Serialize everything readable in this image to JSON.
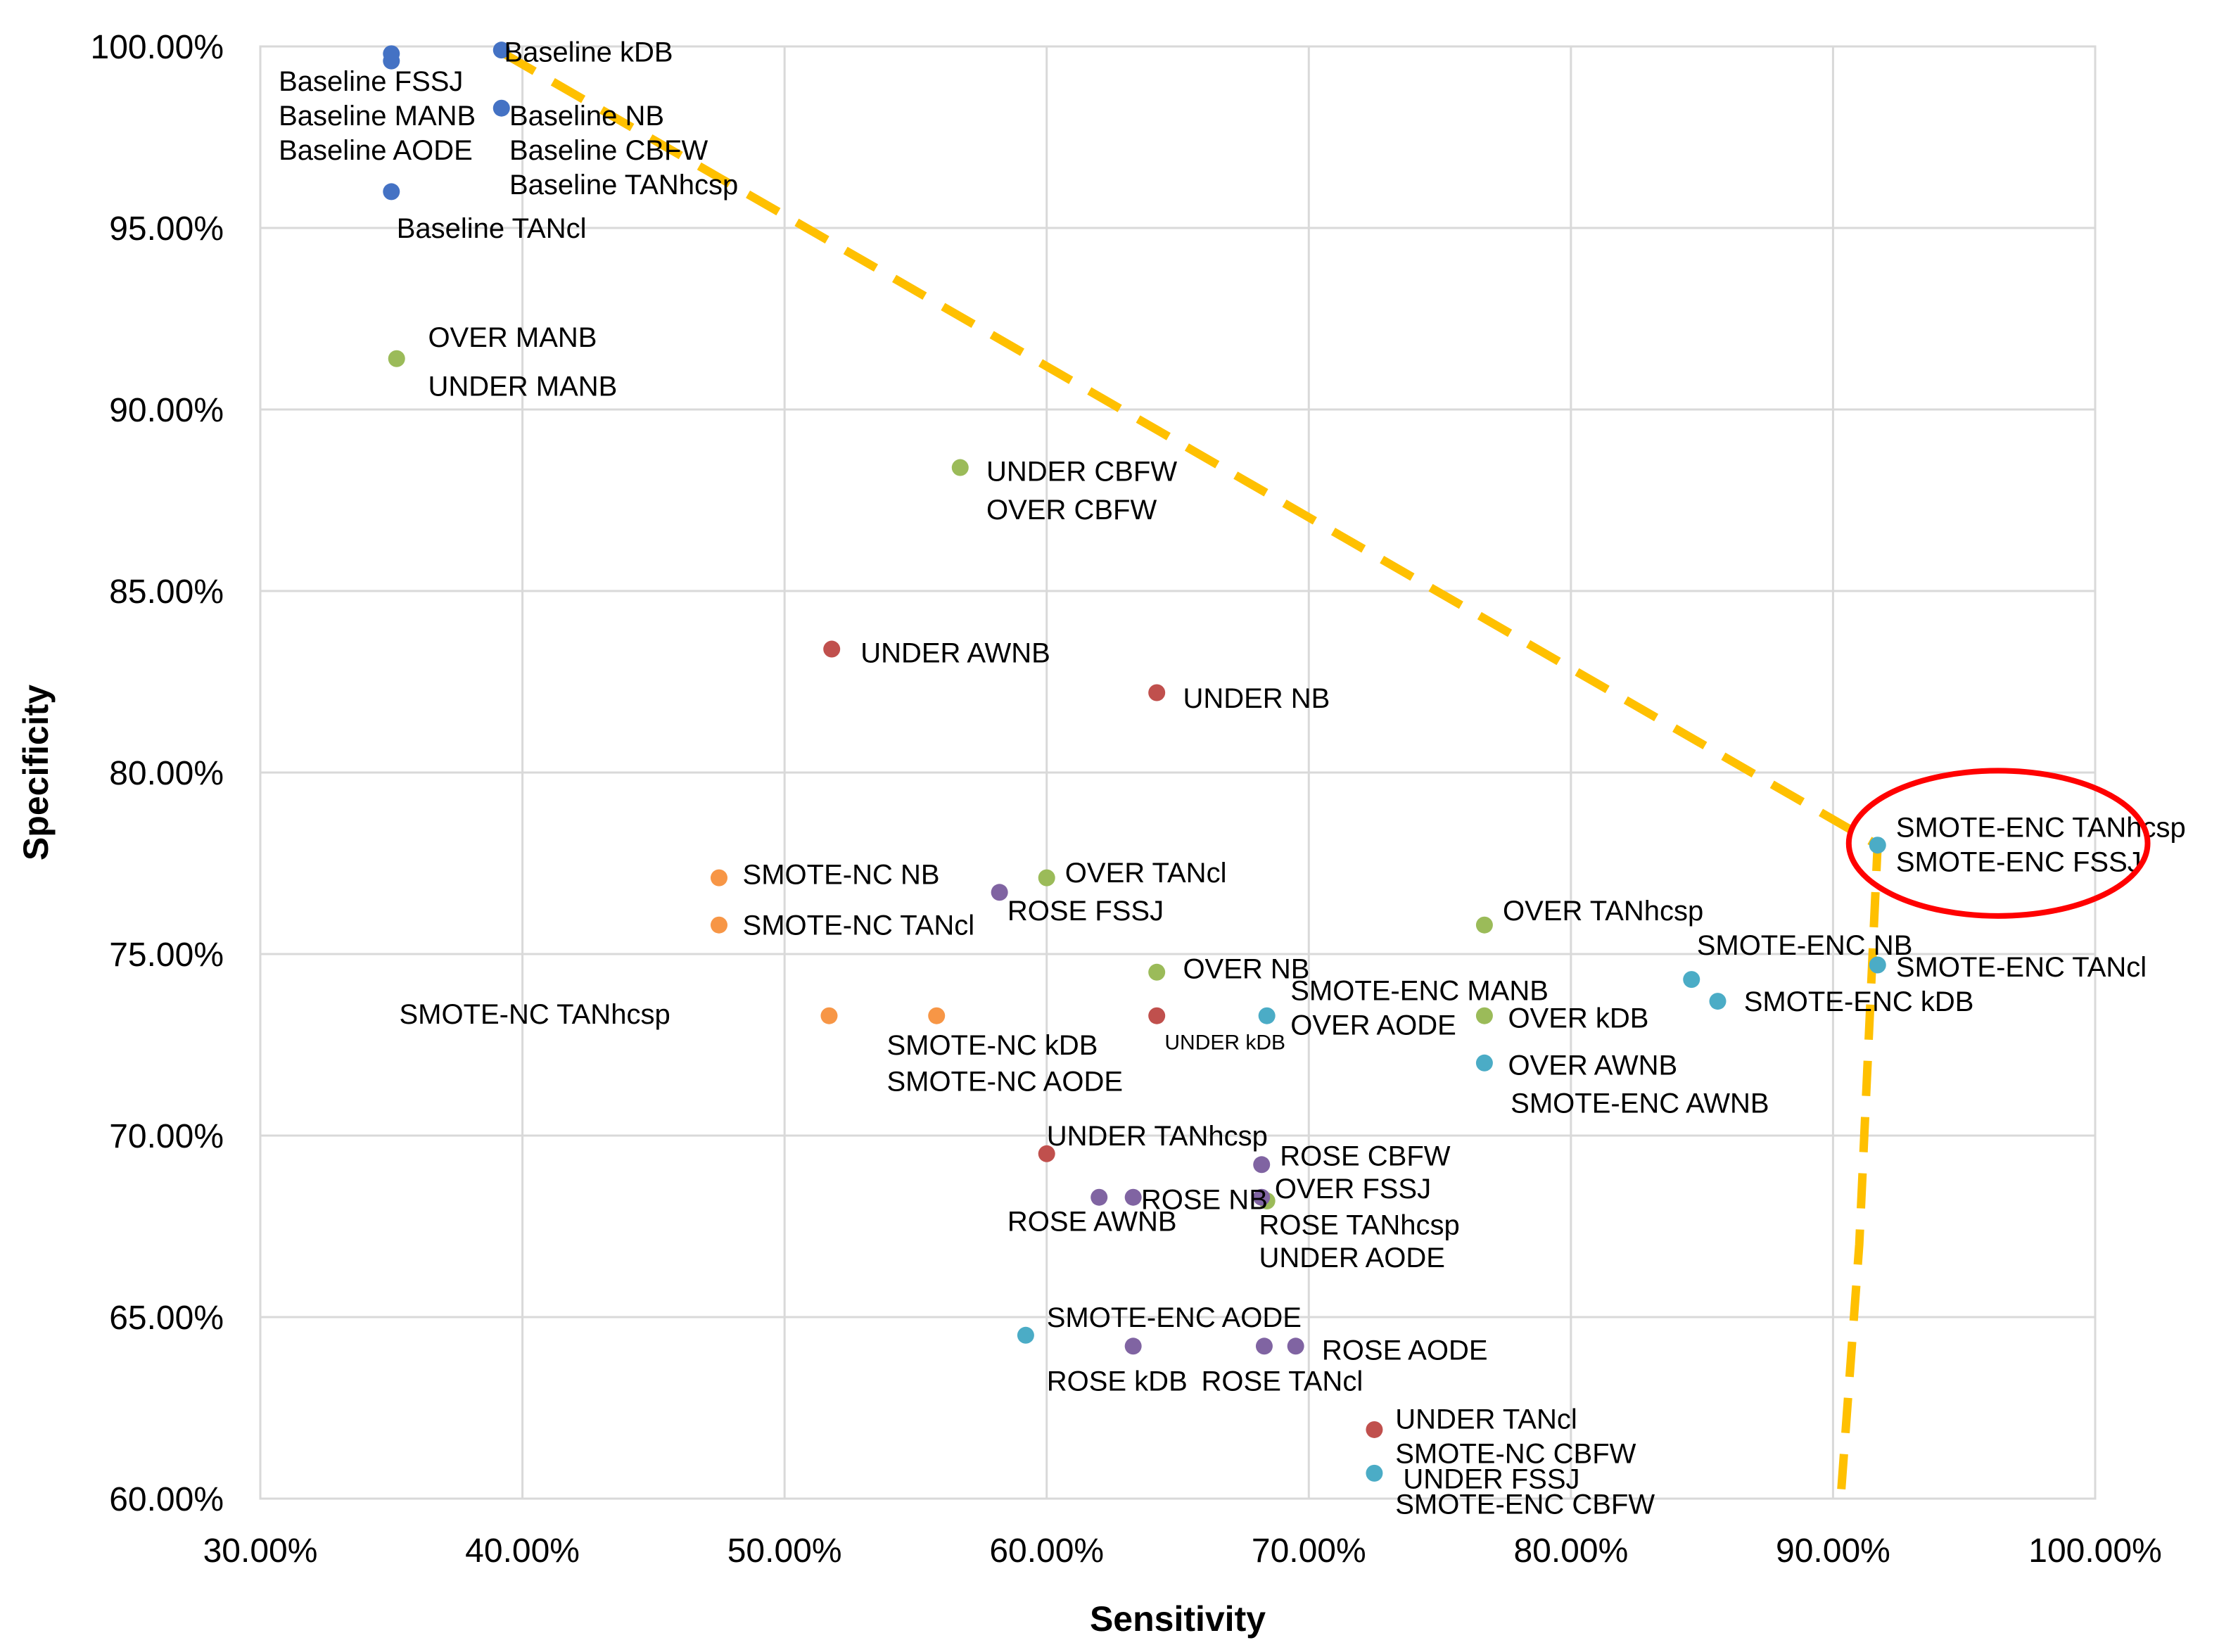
{
  "chart_data": {
    "type": "scatter",
    "title": "",
    "xlabel": "Sensitivity",
    "ylabel": "Specificity",
    "xlim": [
      0.3,
      1.0
    ],
    "ylim": [
      0.6,
      1.0
    ],
    "x_ticks": [
      {
        "value": 0.3,
        "label": "30.00%"
      },
      {
        "value": 0.4,
        "label": "40.00%"
      },
      {
        "value": 0.5,
        "label": "50.00%"
      },
      {
        "value": 0.6,
        "label": "60.00%"
      },
      {
        "value": 0.7,
        "label": "70.00%"
      },
      {
        "value": 0.8,
        "label": "80.00%"
      },
      {
        "value": 0.9,
        "label": "90.00%"
      },
      {
        "value": 1.0,
        "label": "100.00%"
      }
    ],
    "y_ticks": [
      {
        "value": 0.6,
        "label": "60.00%"
      },
      {
        "value": 0.65,
        "label": "65.00%"
      },
      {
        "value": 0.7,
        "label": "70.00%"
      },
      {
        "value": 0.75,
        "label": "75.00%"
      },
      {
        "value": 0.8,
        "label": "80.00%"
      },
      {
        "value": 0.85,
        "label": "85.00%"
      },
      {
        "value": 0.9,
        "label": "90.00%"
      },
      {
        "value": 0.95,
        "label": "95.00%"
      },
      {
        "value": 1.0,
        "label": "100.00%"
      }
    ],
    "grid": true,
    "series": [
      {
        "name": "Baseline",
        "color": "#4472c4",
        "points": [
          {
            "x": 0.35,
            "y": 0.998
          },
          {
            "x": 0.35,
            "y": 0.996
          },
          {
            "x": 0.392,
            "y": 0.999
          },
          {
            "x": 0.392,
            "y": 0.983
          },
          {
            "x": 0.35,
            "y": 0.96
          }
        ]
      },
      {
        "name": "UNDER",
        "color": "#c0504d",
        "points": [
          {
            "x": 0.518,
            "y": 0.834
          },
          {
            "x": 0.642,
            "y": 0.822
          },
          {
            "x": 0.642,
            "y": 0.733
          },
          {
            "x": 0.6,
            "y": 0.695
          },
          {
            "x": 0.725,
            "y": 0.619
          }
        ]
      },
      {
        "name": "OVER",
        "color": "#9bbb59",
        "points": [
          {
            "x": 0.352,
            "y": 0.914
          },
          {
            "x": 0.567,
            "y": 0.884
          },
          {
            "x": 0.6,
            "y": 0.771
          },
          {
            "x": 0.767,
            "y": 0.758
          },
          {
            "x": 0.642,
            "y": 0.745
          },
          {
            "x": 0.767,
            "y": 0.733
          },
          {
            "x": 0.684,
            "y": 0.682
          }
        ]
      },
      {
        "name": "SMOTE-NC",
        "color": "#f79646",
        "points": [
          {
            "x": 0.475,
            "y": 0.771
          },
          {
            "x": 0.475,
            "y": 0.758
          },
          {
            "x": 0.517,
            "y": 0.733
          },
          {
            "x": 0.558,
            "y": 0.733
          }
        ]
      },
      {
        "name": "ROSE",
        "color": "#8064a2",
        "points": [
          {
            "x": 0.582,
            "y": 0.767
          },
          {
            "x": 0.682,
            "y": 0.692
          },
          {
            "x": 0.62,
            "y": 0.683
          },
          {
            "x": 0.633,
            "y": 0.683
          },
          {
            "x": 0.682,
            "y": 0.683
          },
          {
            "x": 0.633,
            "y": 0.642
          },
          {
            "x": 0.683,
            "y": 0.642
          },
          {
            "x": 0.695,
            "y": 0.642
          }
        ]
      },
      {
        "name": "SMOTE-ENC",
        "color": "#4bacc6",
        "points": [
          {
            "x": 0.917,
            "y": 0.78
          },
          {
            "x": 0.917,
            "y": 0.747
          },
          {
            "x": 0.846,
            "y": 0.743
          },
          {
            "x": 0.856,
            "y": 0.737
          },
          {
            "x": 0.684,
            "y": 0.733
          },
          {
            "x": 0.767,
            "y": 0.72
          },
          {
            "x": 0.592,
            "y": 0.645
          },
          {
            "x": 0.725,
            "y": 0.607
          }
        ]
      }
    ],
    "labels": [
      {
        "text": "Baseline kDB",
        "x": 0.393,
        "y": 0.9985
      },
      {
        "text": "Baseline FSSJ",
        "x": 0.307,
        "y": 0.9905
      },
      {
        "text": "Baseline MANB",
        "x": 0.307,
        "y": 0.981
      },
      {
        "text": "Baseline AODE",
        "x": 0.307,
        "y": 0.9715
      },
      {
        "text": "Baseline NB",
        "x": 0.395,
        "y": 0.981
      },
      {
        "text": "Baseline CBFW",
        "x": 0.395,
        "y": 0.9715
      },
      {
        "text": "Baseline TANhcsp",
        "x": 0.395,
        "y": 0.962
      },
      {
        "text": "Baseline TANcl",
        "x": 0.352,
        "y": 0.95
      },
      {
        "text": "OVER MANB",
        "x": 0.364,
        "y": 0.92
      },
      {
        "text": "UNDER MANB",
        "x": 0.364,
        "y": 0.9065
      },
      {
        "text": "UNDER CBFW",
        "x": 0.577,
        "y": 0.883
      },
      {
        "text": "OVER CBFW",
        "x": 0.577,
        "y": 0.8725
      },
      {
        "text": "UNDER AWNB",
        "x": 0.529,
        "y": 0.833
      },
      {
        "text": "UNDER NB",
        "x": 0.652,
        "y": 0.8205
      },
      {
        "text": "SMOTE-ENC TANhcsp",
        "x": 0.924,
        "y": 0.785
      },
      {
        "text": "SMOTE-ENC FSSJ",
        "x": 0.924,
        "y": 0.7755
      },
      {
        "text": "SMOTE-NC NB",
        "x": 0.484,
        "y": 0.772
      },
      {
        "text": "OVER TANcl",
        "x": 0.607,
        "y": 0.7725
      },
      {
        "text": "ROSE FSSJ",
        "x": 0.585,
        "y": 0.762
      },
      {
        "text": "SMOTE-NC TANcl",
        "x": 0.484,
        "y": 0.758
      },
      {
        "text": "OVER TANhcsp",
        "x": 0.774,
        "y": 0.762
      },
      {
        "text": "SMOTE-ENC NB",
        "x": 0.848,
        "y": 0.7525
      },
      {
        "text": "SMOTE-ENC TANcl",
        "x": 0.924,
        "y": 0.7465
      },
      {
        "text": "OVER NB",
        "x": 0.652,
        "y": 0.746
      },
      {
        "text": "SMOTE-ENC MANB",
        "x": 0.693,
        "y": 0.74
      },
      {
        "text": "SMOTE-ENC kDB",
        "x": 0.866,
        "y": 0.737
      },
      {
        "text": "SMOTE-NC TANhcsp",
        "x": 0.353,
        "y": 0.7335
      },
      {
        "text": "OVER AODE",
        "x": 0.693,
        "y": 0.7305
      },
      {
        "text": "OVER kDB",
        "x": 0.776,
        "y": 0.7325
      },
      {
        "text": "UNDER kDB",
        "x": 0.645,
        "y": 0.7265,
        "small": true
      },
      {
        "text": "SMOTE-NC kDB",
        "x": 0.539,
        "y": 0.725
      },
      {
        "text": "OVER AWNB",
        "x": 0.776,
        "y": 0.7195
      },
      {
        "text": "SMOTE-NC AODE",
        "x": 0.539,
        "y": 0.715
      },
      {
        "text": "SMOTE-ENC AWNB",
        "x": 0.777,
        "y": 0.709
      },
      {
        "text": "UNDER TANhcsp",
        "x": 0.6,
        "y": 0.7
      },
      {
        "text": "ROSE CBFW",
        "x": 0.689,
        "y": 0.6945
      },
      {
        "text": "OVER FSSJ",
        "x": 0.687,
        "y": 0.6855
      },
      {
        "text": "ROSE NB",
        "x": 0.636,
        "y": 0.6825
      },
      {
        "text": "ROSE AWNB",
        "x": 0.585,
        "y": 0.6765
      },
      {
        "text": "ROSE TANhcsp",
        "x": 0.681,
        "y": 0.6755
      },
      {
        "text": "UNDER AODE",
        "x": 0.681,
        "y": 0.6665
      },
      {
        "text": "SMOTE-ENC AODE",
        "x": 0.6,
        "y": 0.65
      },
      {
        "text": "ROSE AODE",
        "x": 0.705,
        "y": 0.641
      },
      {
        "text": "ROSE kDB",
        "x": 0.6,
        "y": 0.6325
      },
      {
        "text": "ROSE TANcl",
        "x": 0.659,
        "y": 0.6325
      },
      {
        "text": "UNDER TANcl",
        "x": 0.733,
        "y": 0.622
      },
      {
        "text": "SMOTE-NC CBFW",
        "x": 0.733,
        "y": 0.6125
      },
      {
        "text": "UNDER FSSJ",
        "x": 0.736,
        "y": 0.6055
      },
      {
        "text": "SMOTE-ENC CBFW",
        "x": 0.733,
        "y": 0.5985
      }
    ],
    "annotations": {
      "frontier_line": {
        "color": "#ffc000",
        "style": "dashed",
        "points": [
          {
            "x": 0.393,
            "y": 0.998
          },
          {
            "x": 0.917,
            "y": 0.78
          },
          {
            "x": 0.91,
            "y": 0.67
          },
          {
            "x": 0.903,
            "y": 0.601
          }
        ]
      },
      "highlight_ellipse": {
        "color": "#ff0000",
        "center": {
          "x": 0.963,
          "y": 0.7805
        },
        "radius_data": {
          "x": 0.057,
          "y": 0.02
        }
      }
    }
  }
}
